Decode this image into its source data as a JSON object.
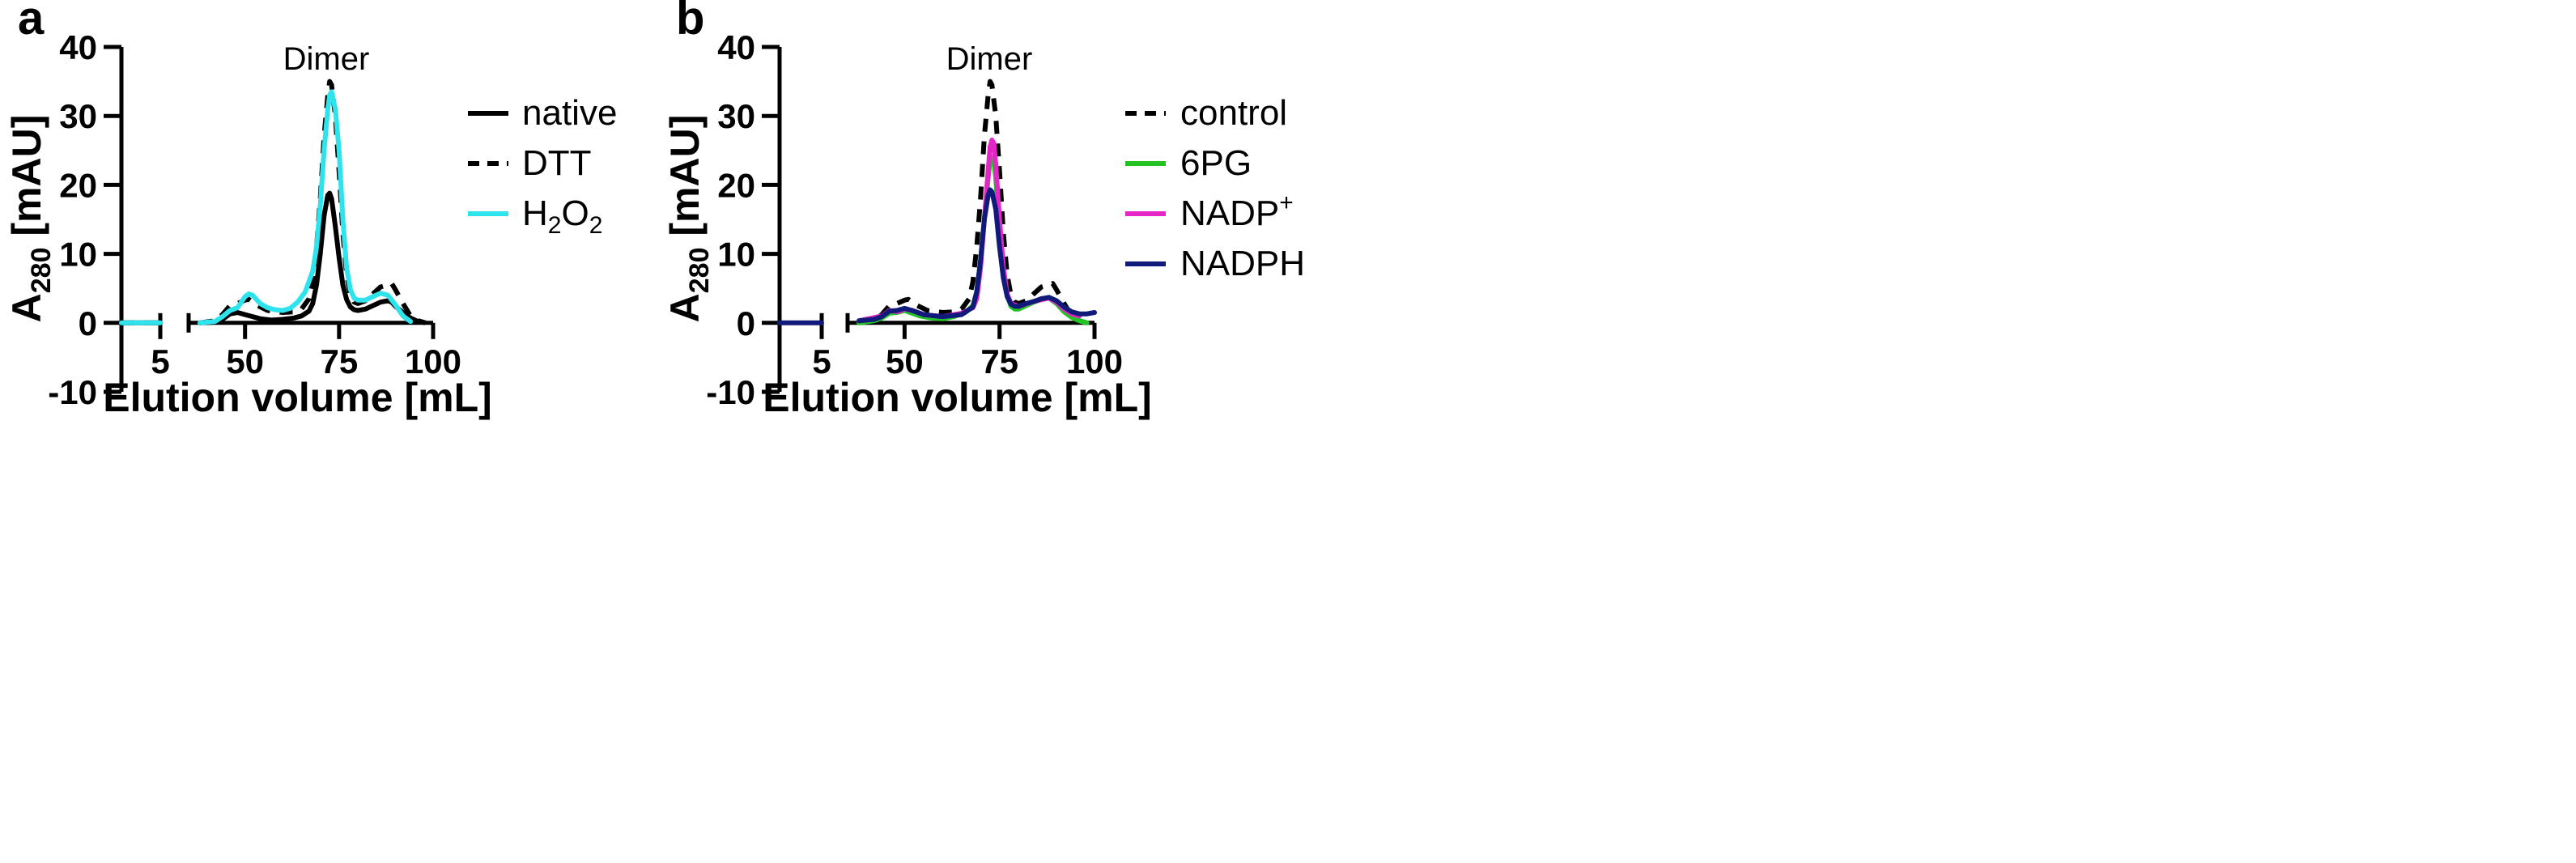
{
  "chart_data": [
    {
      "panel_label": "a",
      "type": "line",
      "annotation": "Dimer",
      "xlabel": "Elution volume [mL]",
      "ylabel_main": "A",
      "ylabel_sub": "280",
      "ylabel_rest": " [mAU]",
      "ylim": [
        -10,
        40
      ],
      "yticks": [
        "40",
        "30",
        "20",
        "10",
        "0",
        "-10"
      ],
      "ytick_values": [
        40,
        30,
        20,
        10,
        0,
        -10
      ],
      "x_break": {
        "left_range": [
          0,
          5
        ],
        "right_range": [
          35,
          100
        ]
      },
      "xticks_left": [
        {
          "label": "5",
          "value": 5
        }
      ],
      "xticks_right": [
        {
          "label": "50",
          "value": 50
        },
        {
          "label": "75",
          "value": 75
        },
        {
          "label": "100",
          "value": 100
        }
      ],
      "legend_position": "right",
      "series": [
        {
          "name": "native",
          "color": "#000000",
          "dash": false,
          "x": [
            0,
            5,
            38,
            42,
            44,
            46,
            48,
            50,
            52,
            54,
            57,
            60,
            63,
            65,
            67,
            68,
            69,
            70,
            71,
            72,
            72.5,
            73,
            74,
            75,
            76,
            77,
            78,
            79,
            80,
            82,
            84,
            86,
            88,
            89,
            90,
            92,
            94,
            96
          ],
          "y": [
            0,
            0,
            0,
            0.1,
            0.5,
            1.3,
            1.5,
            1.2,
            0.9,
            0.6,
            0.4,
            0.5,
            0.7,
            1.0,
            1.7,
            2.8,
            5.5,
            10,
            15.5,
            18.5,
            18.8,
            18.0,
            14,
            9.5,
            5.5,
            3.4,
            2.3,
            1.9,
            1.8,
            2.0,
            2.5,
            3.0,
            3.2,
            3.0,
            2.4,
            1.5,
            0.7,
            0.2
          ]
        },
        {
          "name": "DTT",
          "color": "#000000",
          "dash": true,
          "x": [
            0,
            5,
            38,
            42,
            44,
            46,
            48,
            50,
            51,
            53,
            56,
            60,
            63,
            65,
            67,
            68,
            69,
            70,
            71,
            72,
            72.5,
            73,
            74,
            75,
            76,
            77,
            78,
            79,
            80,
            82,
            84,
            86,
            88,
            89,
            90,
            92,
            94,
            96,
            98
          ],
          "y": [
            0,
            0,
            0,
            0.3,
            1.2,
            2.5,
            2.8,
            3.3,
            3.4,
            2.6,
            1.8,
            1.5,
            1.6,
            2.0,
            3.5,
            6,
            11,
            18,
            27,
            33,
            35.0,
            34.5,
            30,
            22,
            13,
            7,
            4.0,
            3.0,
            2.8,
            3.2,
            4.2,
            5.2,
            5.5,
            5.7,
            4.8,
            2.8,
            1.0,
            0.3,
            0
          ]
        },
        {
          "name": "H2O2",
          "color": "#2fe3ec",
          "dash": false,
          "x": [
            0,
            5,
            38,
            42,
            44,
            46,
            48,
            50,
            51,
            52,
            54,
            56,
            58,
            60,
            62,
            64,
            66,
            68,
            69,
            70,
            71,
            72,
            72.5,
            73,
            74,
            75,
            76,
            77,
            78,
            79,
            80,
            82,
            84,
            86,
            88,
            90,
            92,
            94
          ],
          "y": [
            0,
            0,
            0,
            0.2,
            0.9,
            1.8,
            2.2,
            3.8,
            4.2,
            4.0,
            2.8,
            2.2,
            1.9,
            1.8,
            2.1,
            3.0,
            4.5,
            7.5,
            11,
            17,
            25,
            31,
            33,
            33.5,
            31,
            25,
            15,
            8,
            4.8,
            3.6,
            3.3,
            3.3,
            3.8,
            4.3,
            4.0,
            2.6,
            1.0,
            0.2
          ]
        }
      ]
    },
    {
      "panel_label": "b",
      "type": "line",
      "annotation": "Dimer",
      "xlabel": "Elution volume [mL]",
      "ylabel_main": "A",
      "ylabel_sub": "280",
      "ylabel_rest": " [mAU]",
      "ylim": [
        -10,
        40
      ],
      "yticks": [
        "40",
        "30",
        "20",
        "10",
        "0",
        "-10"
      ],
      "ytick_values": [
        40,
        30,
        20,
        10,
        0,
        -10
      ],
      "x_break": {
        "left_range": [
          0,
          5
        ],
        "right_range": [
          35,
          100
        ]
      },
      "xticks_left": [
        {
          "label": "5",
          "value": 5
        }
      ],
      "xticks_right": [
        {
          "label": "50",
          "value": 50
        },
        {
          "label": "75",
          "value": 75
        },
        {
          "label": "100",
          "value": 100
        }
      ],
      "legend_position": "right",
      "series": [
        {
          "name": "control",
          "color": "#000000",
          "dash": true,
          "x": [
            38,
            42,
            44,
            46,
            48,
            50,
            51,
            53,
            56,
            60,
            63,
            65,
            67,
            68,
            69,
            70,
            71,
            72,
            72.5,
            73,
            74,
            75,
            76,
            77,
            78,
            79,
            80,
            82,
            84,
            86,
            88,
            89,
            90,
            92,
            94,
            96,
            98
          ],
          "y": [
            0,
            0.3,
            1.2,
            2.5,
            2.8,
            3.3,
            3.4,
            2.6,
            1.8,
            1.5,
            1.6,
            2.0,
            3.5,
            6,
            11,
            18,
            27,
            33,
            35.0,
            34.5,
            30,
            22,
            13,
            7,
            4.0,
            3.0,
            2.8,
            3.2,
            4.2,
            5.2,
            5.5,
            5.7,
            4.8,
            2.8,
            1.0,
            0.3,
            0
          ]
        },
        {
          "name": "6PG",
          "color": "#22c322",
          "dash": false,
          "x": [
            38,
            42,
            44,
            46,
            48,
            50,
            52,
            54,
            57,
            60,
            63,
            66,
            68,
            69,
            70,
            71,
            72,
            72.5,
            73,
            73.5,
            74,
            75,
            76,
            77,
            78,
            79,
            80,
            82,
            84,
            86,
            88,
            90,
            92,
            94,
            96,
            98
          ],
          "y": [
            0,
            0.3,
            0.7,
            1.4,
            1.5,
            1.8,
            1.4,
            1.0,
            0.7,
            0.6,
            0.9,
            1.5,
            2.5,
            4.5,
            9,
            15,
            21,
            23.5,
            24,
            23.5,
            21,
            14,
            7.5,
            4.0,
            2.4,
            2.0,
            2.0,
            2.5,
            3.0,
            3.4,
            3.6,
            2.8,
            1.6,
            0.8,
            0.3,
            0
          ]
        },
        {
          "name": "NADP+",
          "color": "#e526c6",
          "dash": false,
          "x": [
            38,
            44,
            46,
            48,
            50,
            52,
            55,
            60,
            65,
            68,
            69,
            70,
            71,
            72,
            72.5,
            73,
            73.5,
            74,
            75,
            76,
            77,
            78,
            80,
            84,
            88,
            90,
            92,
            94,
            96
          ],
          "y": [
            0.3,
            1.0,
            1.8,
            1.6,
            2.0,
            1.8,
            1.2,
            0.9,
            1.4,
            2.2,
            3.5,
            8,
            15,
            22,
            25.5,
            26.5,
            26,
            23,
            15,
            8,
            4.2,
            2.8,
            2.4,
            3.1,
            3.6,
            3.0,
            2.0,
            1.3,
            1.0
          ]
        },
        {
          "name": "NADPH",
          "color": "#101a7a",
          "dash": false,
          "x": [
            0,
            5,
            38,
            42,
            44,
            46,
            48,
            50,
            52,
            55,
            60,
            65,
            68,
            69,
            70,
            71,
            72,
            72.5,
            73,
            74,
            75,
            76,
            77,
            78,
            79,
            80,
            82,
            84,
            86,
            88,
            90,
            92,
            94,
            96,
            98,
            100
          ],
          "y": [
            0,
            0,
            0.3,
            0.5,
            0.9,
            1.7,
            1.8,
            2.1,
            1.8,
            1.2,
            0.9,
            1.2,
            2.3,
            4.5,
            9,
            15,
            18.5,
            19.3,
            19.0,
            16.5,
            11,
            6.5,
            3.8,
            2.7,
            2.4,
            2.4,
            2.8,
            3.1,
            3.5,
            3.7,
            3.2,
            2.3,
            1.6,
            1.3,
            1.3,
            1.5
          ]
        }
      ]
    }
  ]
}
